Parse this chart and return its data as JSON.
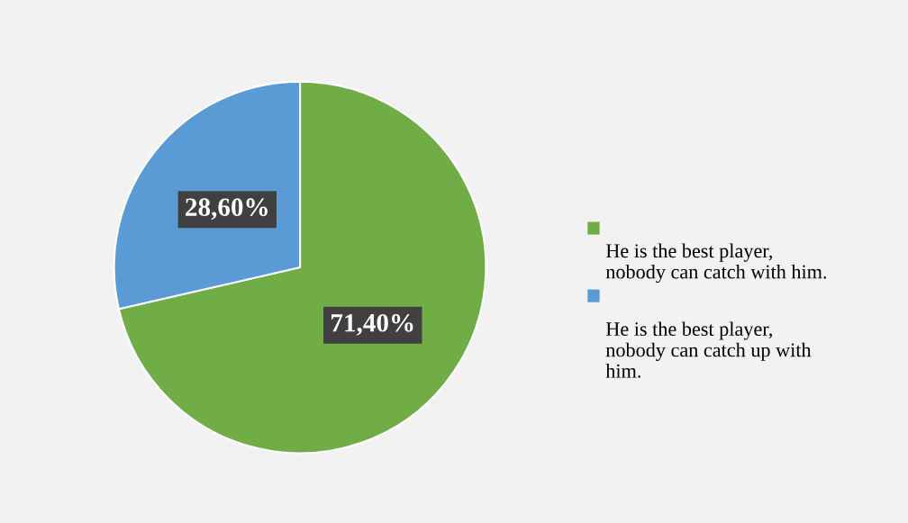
{
  "chart_data": {
    "type": "pie",
    "categories": [
      "He is the best player, nobody can catch with him.",
      "He is the best player, nobody can catch up with him."
    ],
    "values": [
      71.4,
      28.6
    ],
    "colors": [
      "#70ad47",
      "#5b9bd5"
    ],
    "value_labels": [
      "71,40%",
      "28,60%"
    ],
    "legend": "right"
  }
}
